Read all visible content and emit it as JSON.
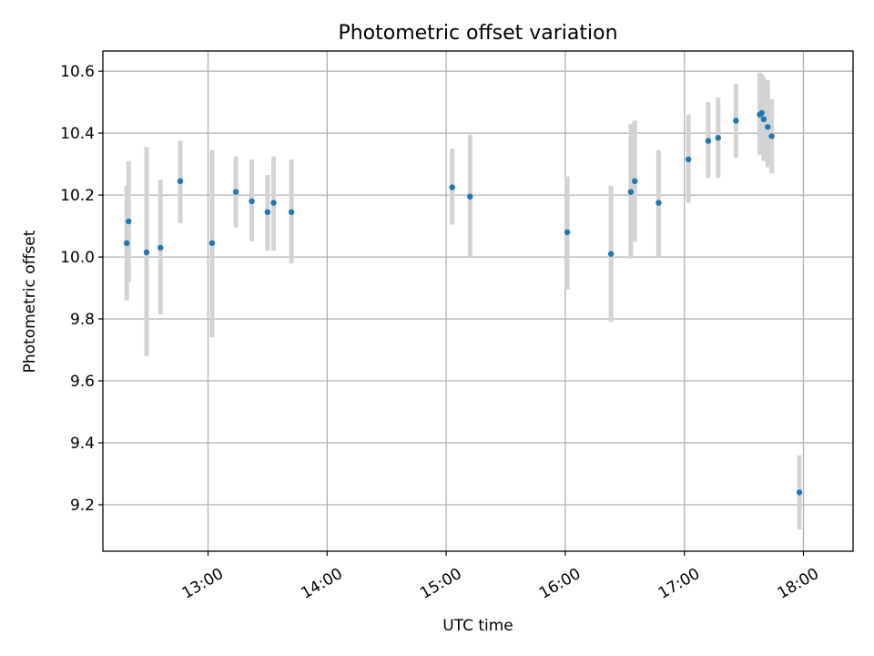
{
  "chart_data": {
    "type": "scatter",
    "title": "Photometric offset variation",
    "xlabel": "UTC time",
    "ylabel": "Photometric offset",
    "xlim": [
      "12:07",
      "18:25"
    ],
    "ylim": [
      9.05,
      10.665
    ],
    "grid": true,
    "xticks": [
      "13:00",
      "14:00",
      "15:00",
      "16:00",
      "17:00",
      "18:00"
    ],
    "yticks": [
      9.2,
      9.4,
      9.6,
      9.8,
      10.0,
      10.2,
      10.4,
      10.6
    ],
    "colors": {
      "point": "#1f77b4",
      "errorbar": "#d3d3d3",
      "grid": "#b0b0b0"
    },
    "points": [
      {
        "x": "12:19",
        "y": 10.045,
        "ylo": 9.86,
        "yhi": 10.23
      },
      {
        "x": "12:20",
        "y": 10.115,
        "ylo": 9.92,
        "yhi": 10.31
      },
      {
        "x": "12:29",
        "y": 10.015,
        "ylo": 9.68,
        "yhi": 10.355
      },
      {
        "x": "12:36",
        "y": 10.03,
        "ylo": 9.815,
        "yhi": 10.25
      },
      {
        "x": "12:46",
        "y": 10.245,
        "ylo": 10.11,
        "yhi": 10.375
      },
      {
        "x": "13:02",
        "y": 10.045,
        "ylo": 9.74,
        "yhi": 10.345
      },
      {
        "x": "13:14",
        "y": 10.21,
        "ylo": 10.095,
        "yhi": 10.325
      },
      {
        "x": "13:22",
        "y": 10.18,
        "ylo": 10.05,
        "yhi": 10.315
      },
      {
        "x": "13:30",
        "y": 10.145,
        "ylo": 10.02,
        "yhi": 10.265
      },
      {
        "x": "13:33",
        "y": 10.175,
        "ylo": 10.02,
        "yhi": 10.325
      },
      {
        "x": "13:42",
        "y": 10.145,
        "ylo": 9.98,
        "yhi": 10.315
      },
      {
        "x": "15:03",
        "y": 10.225,
        "ylo": 10.105,
        "yhi": 10.35
      },
      {
        "x": "15:12",
        "y": 10.195,
        "ylo": 10.0,
        "yhi": 10.395
      },
      {
        "x": "16:01",
        "y": 10.08,
        "ylo": 9.895,
        "yhi": 10.26
      },
      {
        "x": "16:23",
        "y": 10.01,
        "ylo": 9.79,
        "yhi": 10.23
      },
      {
        "x": "16:33",
        "y": 10.21,
        "ylo": 9.995,
        "yhi": 10.43
      },
      {
        "x": "16:35",
        "y": 10.245,
        "ylo": 10.05,
        "yhi": 10.44
      },
      {
        "x": "16:47",
        "y": 10.175,
        "ylo": 10.0,
        "yhi": 10.345
      },
      {
        "x": "17:02",
        "y": 10.315,
        "ylo": 10.175,
        "yhi": 10.46
      },
      {
        "x": "17:12",
        "y": 10.375,
        "ylo": 10.255,
        "yhi": 10.5
      },
      {
        "x": "17:17",
        "y": 10.385,
        "ylo": 10.255,
        "yhi": 10.515
      },
      {
        "x": "17:26",
        "y": 10.44,
        "ylo": 10.32,
        "yhi": 10.56
      },
      {
        "x": "17:38",
        "y": 10.46,
        "ylo": 10.33,
        "yhi": 10.595
      },
      {
        "x": "17:39",
        "y": 10.465,
        "ylo": 10.34,
        "yhi": 10.59
      },
      {
        "x": "17:40",
        "y": 10.445,
        "ylo": 10.31,
        "yhi": 10.58
      },
      {
        "x": "17:42",
        "y": 10.42,
        "ylo": 10.29,
        "yhi": 10.57
      },
      {
        "x": "17:44",
        "y": 10.39,
        "ylo": 10.27,
        "yhi": 10.51
      },
      {
        "x": "17:58",
        "y": 9.24,
        "ylo": 9.12,
        "yhi": 9.36
      }
    ]
  }
}
